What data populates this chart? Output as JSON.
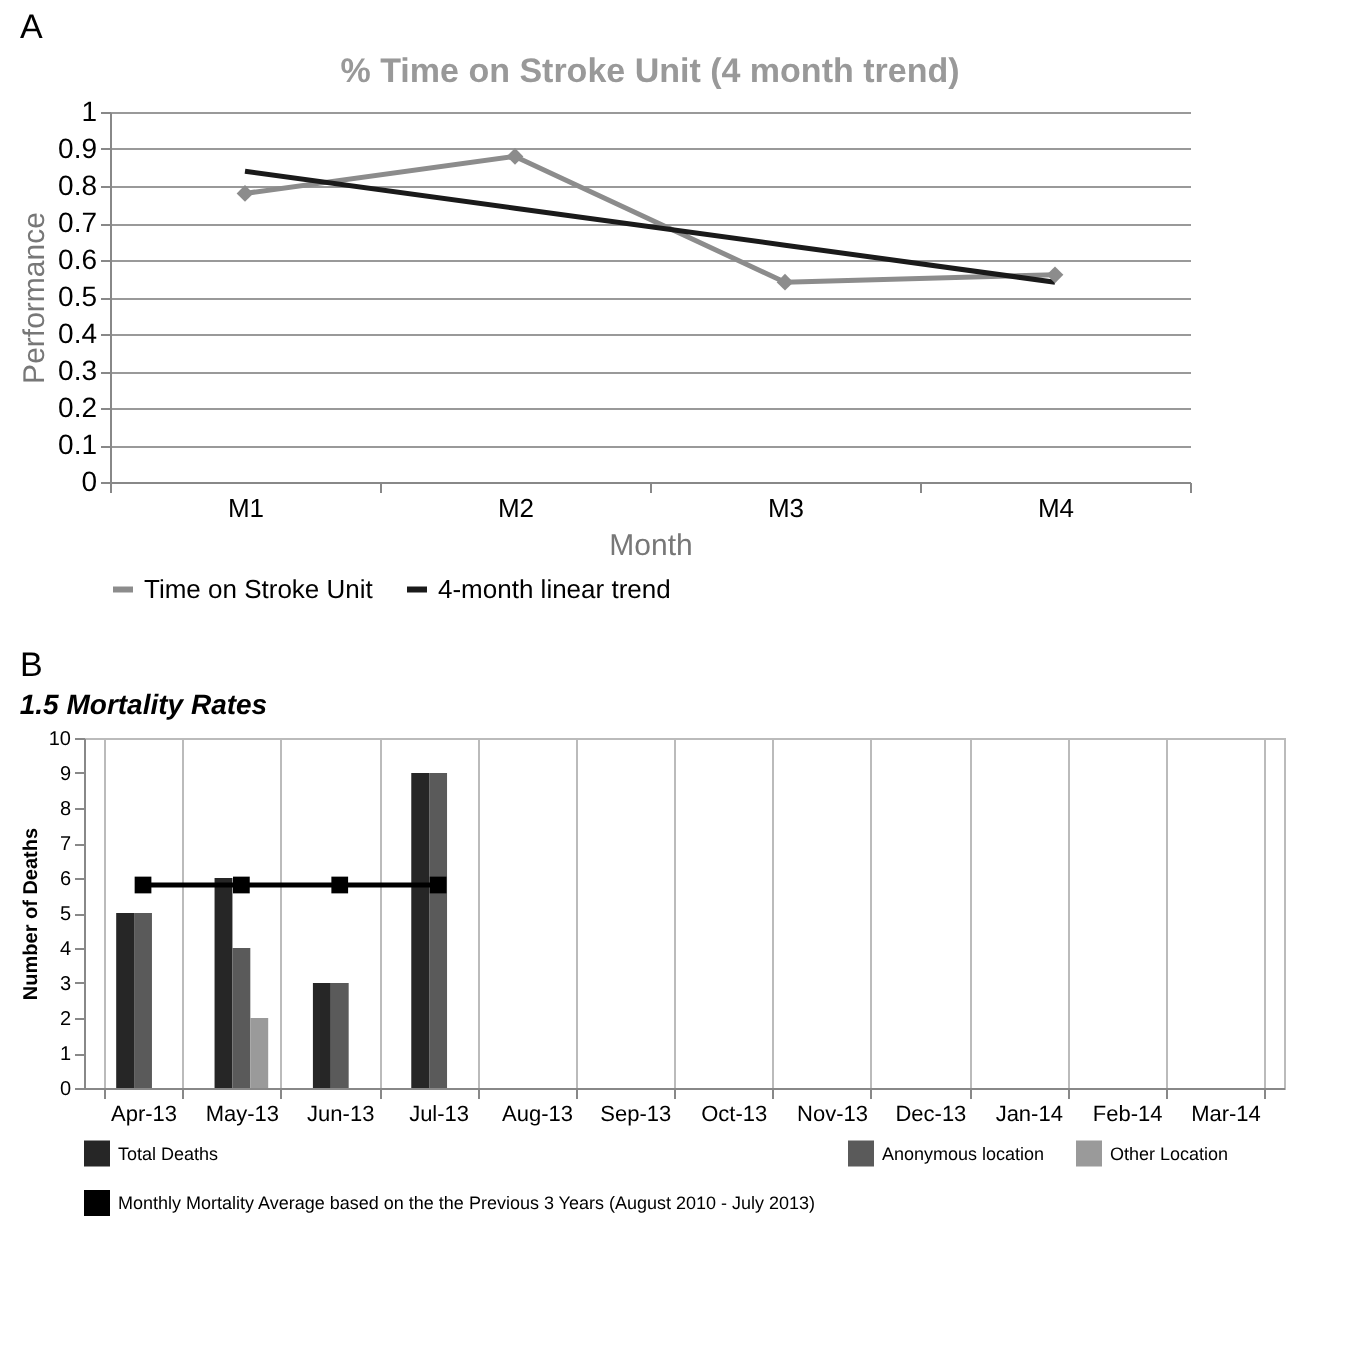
{
  "chart_data": [
    {
      "type": "line",
      "title": "% Time on Stroke Unit (4 month trend)",
      "xlabel": "Month",
      "ylabel": "Performance",
      "annotations": [
        "A"
      ],
      "categories": [
        "M1",
        "M2",
        "M3",
        "M4"
      ],
      "series": [
        {
          "name": "Time on Stroke Unit",
          "color": "#8c8c8c",
          "marker": "diamond",
          "values": [
            0.78,
            0.88,
            0.54,
            0.56
          ]
        },
        {
          "name": "4-month linear trend",
          "color": "#1a1a1a",
          "values": [
            0.84,
            0.74,
            0.64,
            0.54
          ]
        }
      ],
      "ylim": [
        0,
        1
      ],
      "yticks": [
        0,
        0.1,
        0.2,
        0.3,
        0.4,
        0.5,
        0.6,
        0.7,
        0.8,
        0.9,
        1
      ],
      "grid": "y",
      "legend": "bottom"
    },
    {
      "type": "bar",
      "title": "1.5  Mortality Rates",
      "ylabel": "Number of Deaths",
      "annotations": [
        "B"
      ],
      "categories": [
        "Apr-13",
        "May-13",
        "Jun-13",
        "Jul-13",
        "Aug-13",
        "Sep-13",
        "Oct-13",
        "Nov-13",
        "Dec-13",
        "Jan-14",
        "Feb-14",
        "Mar-14"
      ],
      "series": [
        {
          "name": "Total Deaths",
          "color": "#262626",
          "values": [
            5,
            6,
            3,
            9,
            null,
            null,
            null,
            null,
            null,
            null,
            null,
            null
          ]
        },
        {
          "name": "Anonymous location",
          "color": "#5a5a5a",
          "values": [
            5,
            4,
            3,
            9,
            null,
            null,
            null,
            null,
            null,
            null,
            null,
            null
          ]
        },
        {
          "name": "Other Location",
          "color": "#9a9a9a",
          "values": [
            null,
            2,
            null,
            null,
            null,
            null,
            null,
            null,
            null,
            null,
            null,
            null
          ]
        },
        {
          "name": "Monthly Mortality Average based on the the Previous 3 Years (August 2010 - July 2013)",
          "type": "line",
          "color": "#000000",
          "marker": "square",
          "values": [
            5.8,
            5.8,
            5.8,
            5.8,
            null,
            null,
            null,
            null,
            null,
            null,
            null,
            null
          ]
        }
      ],
      "ylim": [
        0,
        10
      ],
      "yticks": [
        0,
        1,
        2,
        3,
        4,
        5,
        6,
        7,
        8,
        9,
        10
      ],
      "grid": "x",
      "legend": "bottom"
    }
  ]
}
